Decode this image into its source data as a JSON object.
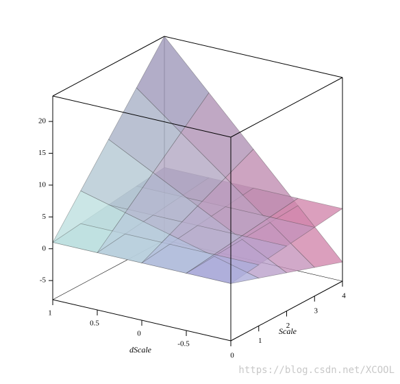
{
  "chart_data": {
    "type": "surface3d",
    "x_label": "dScale",
    "y_label": "Scale",
    "x": [
      1,
      0.5,
      0,
      -0.5,
      -1
    ],
    "y": [
      0,
      1,
      2,
      3,
      4
    ],
    "xlim": [
      1,
      -1
    ],
    "ylim": [
      0,
      4
    ],
    "zlim": [
      -8,
      24
    ],
    "xticks": [
      1,
      0.5,
      0,
      -0.5
    ],
    "yticks": [
      0,
      1,
      2,
      3,
      4
    ],
    "zticks": [
      -5,
      0,
      5,
      10,
      15,
      20
    ],
    "colormap": [
      "#c8f5e6",
      "#8c8cb4",
      "#e27ca0",
      "#a0a8e0"
    ],
    "surfaces": [
      {
        "z": [
          [
            1,
            1,
            1,
            1,
            1
          ],
          [
            6.75,
            4.94,
            3.13,
            1.31,
            -0.5
          ],
          [
            12.5,
            8.88,
            5.25,
            1.63,
            -2
          ],
          [
            18.25,
            12.81,
            7.38,
            1.94,
            -3.5
          ],
          [
            24,
            16.75,
            9.5,
            2.25,
            -5
          ]
        ]
      },
      {
        "z": [
          [
            1,
            1,
            1,
            1,
            1
          ],
          [
            1.6,
            1.6,
            1.6,
            1.6,
            1.6
          ],
          [
            2.2,
            2.2,
            2.2,
            2.2,
            2.2
          ],
          [
            2.8,
            2.8,
            2.8,
            2.8,
            2.8
          ],
          [
            3.4,
            3.4,
            3.4,
            3.4,
            3.4
          ]
        ]
      }
    ]
  },
  "watermark": "https://blog.csdn.net/XCOOL"
}
